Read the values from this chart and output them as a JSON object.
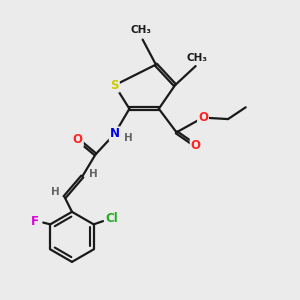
{
  "bg_color": "#ebebeb",
  "bond_color": "#1a1a1a",
  "colors": {
    "S": "#cccc00",
    "O": "#ff2222",
    "N": "#0000ee",
    "Cl": "#22aa22",
    "F": "#dd00dd",
    "H": "#666666",
    "C": "#1a1a1a"
  },
  "font_size": 8.5
}
